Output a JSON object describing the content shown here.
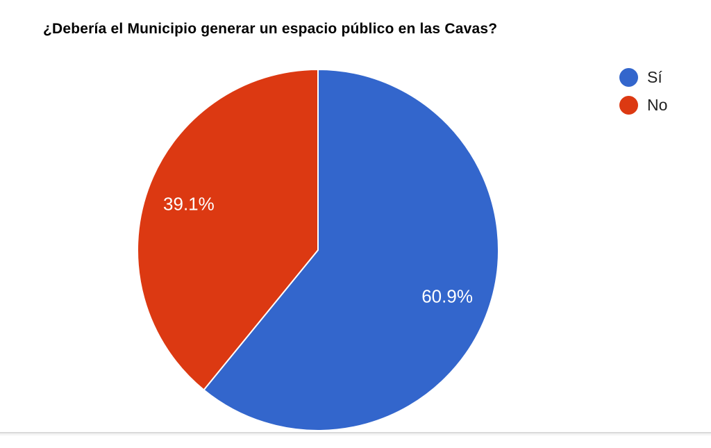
{
  "chart_data": {
    "type": "pie",
    "title": "¿Debería el Municipio generar un espacio público en las Cavas?",
    "legend_position": "right",
    "start_angle_deg": 0,
    "direction": "clockwise",
    "slice_border_color": "#ffffff",
    "label_color": "#ffffff",
    "slices": [
      {
        "label": "Sí",
        "value": 60.9,
        "display": "60.9%",
        "color": "#3366cc"
      },
      {
        "label": "No",
        "value": 39.1,
        "display": "39.1%",
        "color": "#dc3912"
      }
    ]
  }
}
